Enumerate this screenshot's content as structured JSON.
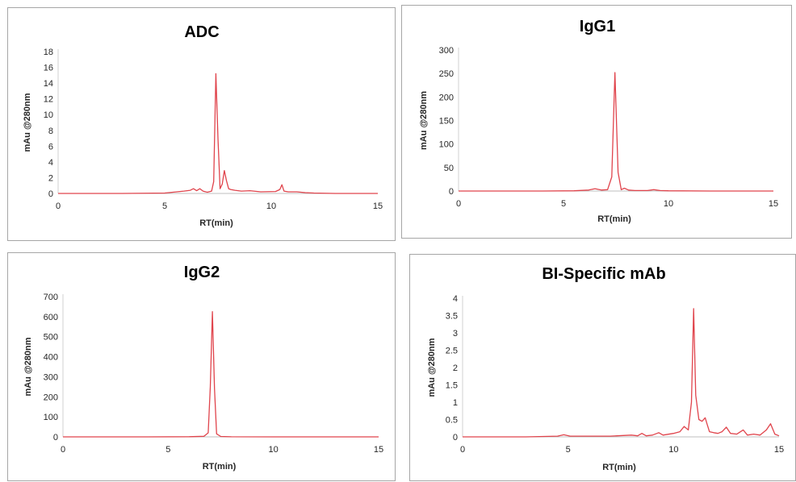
{
  "chart_data": [
    {
      "type": "line",
      "title": "ADC",
      "xlabel": "RT(min)",
      "ylabel": "mAu @280nm",
      "xlim": [
        0,
        15
      ],
      "ylim": [
        0,
        18
      ],
      "xticks": [
        0,
        5,
        10,
        15
      ],
      "yticks": [
        0,
        2,
        4,
        6,
        8,
        10,
        12,
        14,
        16,
        18
      ],
      "color": "#e0444c",
      "series": [
        {
          "x": [
            0,
            3,
            5,
            5.9,
            6.2,
            6.35,
            6.5,
            6.65,
            6.8,
            7.0,
            7.2,
            7.3,
            7.4,
            7.5,
            7.6,
            7.7,
            7.8,
            7.9,
            8.0,
            8.1,
            8.3,
            8.6,
            9.0,
            9.5,
            10.2,
            10.4,
            10.5,
            10.6,
            10.8,
            11.2,
            11.6,
            12,
            13,
            15
          ],
          "y": [
            0,
            0,
            0.05,
            0.3,
            0.4,
            0.6,
            0.35,
            0.6,
            0.3,
            0.15,
            0.3,
            1.5,
            15.2,
            7,
            0.6,
            1.2,
            2.9,
            1.6,
            0.6,
            0.5,
            0.4,
            0.3,
            0.35,
            0.2,
            0.25,
            0.5,
            1.1,
            0.3,
            0.2,
            0.2,
            0.1,
            0.05,
            0,
            0
          ]
        }
      ]
    },
    {
      "type": "line",
      "title": "IgG1",
      "xlabel": "RT(min)",
      "ylabel": "mAu @280nm",
      "xlim": [
        0,
        15
      ],
      "ylim": [
        0,
        300
      ],
      "xticks": [
        0,
        5,
        10,
        15
      ],
      "yticks": [
        0,
        50,
        100,
        150,
        200,
        250,
        300
      ],
      "color": "#e0444c",
      "series": [
        {
          "x": [
            0,
            4,
            5.5,
            6.2,
            6.5,
            6.8,
            7.1,
            7.3,
            7.45,
            7.6,
            7.75,
            7.9,
            8.1,
            8.4,
            9.0,
            9.3,
            9.6,
            10,
            12,
            15
          ],
          "y": [
            0,
            0,
            0.5,
            2,
            5,
            2,
            3,
            30,
            252,
            40,
            3,
            6,
            2,
            1,
            1,
            3,
            1,
            0.5,
            0,
            0
          ]
        }
      ]
    },
    {
      "type": "line",
      "title": "IgG2",
      "xlabel": "RT(min)",
      "ylabel": "mAu @280nm",
      "xlim": [
        0,
        15
      ],
      "ylim": [
        0,
        700
      ],
      "xticks": [
        0,
        5,
        10,
        15
      ],
      "yticks": [
        0,
        100,
        200,
        300,
        400,
        500,
        600,
        700
      ],
      "color": "#e0444c",
      "series": [
        {
          "x": [
            0,
            4,
            6,
            6.7,
            6.9,
            7.0,
            7.1,
            7.2,
            7.3,
            7.5,
            8,
            10,
            15
          ],
          "y": [
            0,
            0,
            1,
            3,
            20,
            250,
            625,
            240,
            15,
            2,
            0.5,
            0,
            0
          ]
        }
      ]
    },
    {
      "type": "line",
      "title": "BI-Specific mAb",
      "xlabel": "RT(min)",
      "ylabel": "mAu @280nm",
      "xlim": [
        0,
        15
      ],
      "ylim": [
        0,
        4
      ],
      "xticks": [
        0,
        5,
        10,
        15
      ],
      "yticks": [
        0,
        0.5,
        1,
        1.5,
        2,
        2.5,
        3,
        3.5,
        4
      ],
      "color": "#e0444c",
      "series": [
        {
          "x": [
            0,
            3,
            4.5,
            4.8,
            5.1,
            6,
            7,
            8,
            8.3,
            8.5,
            8.7,
            9,
            9.3,
            9.5,
            10,
            10.3,
            10.5,
            10.7,
            10.85,
            10.95,
            11.05,
            11.2,
            11.35,
            11.5,
            11.6,
            11.7,
            11.9,
            12.1,
            12.3,
            12.5,
            12.7,
            13,
            13.3,
            13.5,
            13.8,
            14.1,
            14.4,
            14.6,
            14.8,
            15
          ],
          "y": [
            0,
            0,
            0.02,
            0.06,
            0.02,
            0.02,
            0.02,
            0.05,
            0.03,
            0.1,
            0.03,
            0.05,
            0.12,
            0.05,
            0.1,
            0.15,
            0.3,
            0.2,
            1.0,
            3.7,
            1.2,
            0.5,
            0.45,
            0.55,
            0.35,
            0.15,
            0.12,
            0.1,
            0.15,
            0.28,
            0.1,
            0.08,
            0.2,
            0.05,
            0.08,
            0.05,
            0.2,
            0.38,
            0.08,
            0.03
          ]
        }
      ]
    }
  ]
}
